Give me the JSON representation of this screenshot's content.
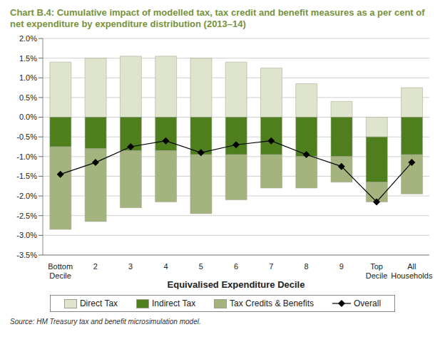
{
  "chart_data": {
    "type": "bar",
    "title": "Chart B.4: Cumulative impact of modelled tax, tax credit and benefit measures as a per cent of net expenditure by expenditure distribution (2013–14)",
    "x_label": "Equivalised Expenditure Decile",
    "source": "Source: HM Treasury tax and benefit microsimulation model.",
    "categories": [
      "Bottom Decile",
      "2",
      "3",
      "4",
      "5",
      "6",
      "7",
      "8",
      "9",
      "Top Decile",
      "All Households"
    ],
    "stacked": true,
    "grid": true,
    "legend": "bottom",
    "ylim": [
      -3.5,
      2.0
    ],
    "yticks": [
      {
        "value": -3.5,
        "label": "-3.5%"
      },
      {
        "value": -3.0,
        "label": "-3.0%"
      },
      {
        "value": -2.5,
        "label": "-2.5%"
      },
      {
        "value": -2.0,
        "label": "-2.0%"
      },
      {
        "value": -1.5,
        "label": "-1.5%"
      },
      {
        "value": -1.0,
        "label": "-1.0%"
      },
      {
        "value": -0.5,
        "label": "-0.5%"
      },
      {
        "value": 0,
        "label": "0.0%"
      },
      {
        "value": 0.5,
        "label": "0.5%"
      },
      {
        "value": 1.0,
        "label": "1.0%"
      },
      {
        "value": 1.5,
        "label": "1.5%"
      },
      {
        "value": 2.0,
        "label": "2.0%"
      }
    ],
    "series": [
      {
        "name": "Direct Tax",
        "type": "bar",
        "color": "#dfe5cc",
        "values": [
          1.4,
          1.5,
          1.55,
          1.55,
          1.5,
          1.4,
          1.25,
          0.85,
          0.4,
          -0.5,
          0.75
        ]
      },
      {
        "name": "Indirect Tax",
        "type": "bar",
        "color": "#4f7f1c",
        "values": [
          -0.75,
          -0.8,
          -0.85,
          -0.85,
          -0.95,
          -0.95,
          -0.95,
          -1.0,
          -1.0,
          -1.15,
          -0.95
        ]
      },
      {
        "name": "Tax Credits & Benefits",
        "type": "bar",
        "color": "#a5b47e",
        "values": [
          -2.1,
          -1.85,
          -1.45,
          -1.3,
          -1.5,
          -1.15,
          -0.85,
          -0.8,
          -0.65,
          -0.5,
          -1.0
        ]
      },
      {
        "name": "Overall",
        "type": "line",
        "color": "#000000",
        "marker": "diamond",
        "values": [
          -1.45,
          -1.15,
          -0.75,
          -0.6,
          -0.9,
          -0.7,
          -0.6,
          -0.95,
          -1.25,
          -2.15,
          -1.15
        ]
      }
    ]
  }
}
